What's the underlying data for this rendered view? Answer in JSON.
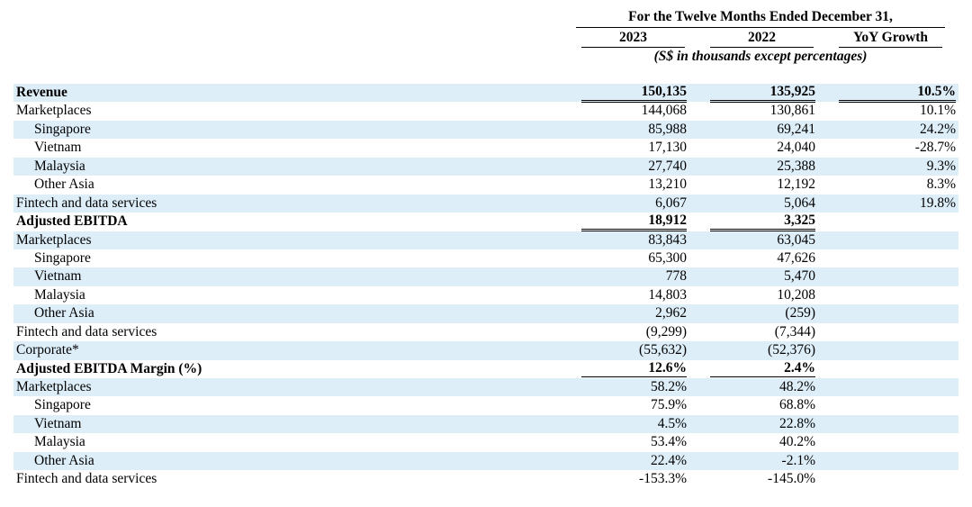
{
  "header": {
    "period": "For the Twelve Months Ended December 31,",
    "col_2023": "2023",
    "col_2022": "2022",
    "col_yoy": "YoY Growth",
    "units": "(S$ in thousands except percentages)"
  },
  "rows": [
    {
      "label": "Revenue",
      "v2023": "150,135",
      "v2022": "135,925",
      "yoy": "10.5%",
      "bold": true,
      "indent": false,
      "shade": true,
      "underline_yoy": true
    },
    {
      "label": "Marketplaces",
      "v2023": "144,068",
      "v2022": "130,861",
      "yoy": "10.1%",
      "bold": false,
      "indent": false,
      "shade": false
    },
    {
      "label": "Singapore",
      "v2023": "85,988",
      "v2022": "69,241",
      "yoy": "24.2%",
      "bold": false,
      "indent": true,
      "shade": true
    },
    {
      "label": "Vietnam",
      "v2023": "17,130",
      "v2022": "24,040",
      "yoy": "-28.7%",
      "bold": false,
      "indent": true,
      "shade": false
    },
    {
      "label": "Malaysia",
      "v2023": "27,740",
      "v2022": "25,388",
      "yoy": "9.3%",
      "bold": false,
      "indent": true,
      "shade": true
    },
    {
      "label": "Other Asia",
      "v2023": "13,210",
      "v2022": "12,192",
      "yoy": "8.3%",
      "bold": false,
      "indent": true,
      "shade": false
    },
    {
      "label": "Fintech and data services",
      "v2023": "6,067",
      "v2022": "5,064",
      "yoy": "19.8%",
      "bold": false,
      "indent": false,
      "shade": true
    },
    {
      "label": "Adjusted EBITDA",
      "v2023": "18,912",
      "v2022": "3,325",
      "yoy": "",
      "bold": true,
      "indent": false,
      "shade": false
    },
    {
      "label": "Marketplaces",
      "v2023": "83,843",
      "v2022": "63,045",
      "yoy": "",
      "bold": false,
      "indent": false,
      "shade": true
    },
    {
      "label": "Singapore",
      "v2023": "65,300",
      "v2022": "47,626",
      "yoy": "",
      "bold": false,
      "indent": true,
      "shade": false
    },
    {
      "label": "Vietnam",
      "v2023": "778",
      "v2022": "5,470",
      "yoy": "",
      "bold": false,
      "indent": true,
      "shade": true
    },
    {
      "label": "Malaysia",
      "v2023": "14,803",
      "v2022": "10,208",
      "yoy": "",
      "bold": false,
      "indent": true,
      "shade": false
    },
    {
      "label": "Other Asia",
      "v2023": "2,962",
      "v2022": "(259)",
      "yoy": "",
      "bold": false,
      "indent": true,
      "shade": true
    },
    {
      "label": "Fintech and data services",
      "v2023": "(9,299)",
      "v2022": "(7,344)",
      "yoy": "",
      "bold": false,
      "indent": false,
      "shade": false
    },
    {
      "label": "Corporate*",
      "v2023": "(55,632)",
      "v2022": "(52,376)",
      "yoy": "",
      "bold": false,
      "indent": false,
      "shade": true
    },
    {
      "label": "Adjusted EBITDA Margin (%)",
      "v2023": "12.6%",
      "v2022": "2.4%",
      "yoy": "",
      "bold": true,
      "indent": false,
      "shade": false
    },
    {
      "label": "Marketplaces",
      "v2023": "58.2%",
      "v2022": "48.2%",
      "yoy": "",
      "bold": false,
      "indent": false,
      "shade": true
    },
    {
      "label": "Singapore",
      "v2023": "75.9%",
      "v2022": "68.8%",
      "yoy": "",
      "bold": false,
      "indent": true,
      "shade": false
    },
    {
      "label": "Vietnam",
      "v2023": "4.5%",
      "v2022": "22.8%",
      "yoy": "",
      "bold": false,
      "indent": true,
      "shade": true
    },
    {
      "label": "Malaysia",
      "v2023": "53.4%",
      "v2022": "40.2%",
      "yoy": "",
      "bold": false,
      "indent": true,
      "shade": false
    },
    {
      "label": "Other Asia",
      "v2023": "22.4%",
      "v2022": "-2.1%",
      "yoy": "",
      "bold": false,
      "indent": true,
      "shade": true
    },
    {
      "label": "Fintech and data services",
      "v2023": "-153.3%",
      "v2022": "-145.0%",
      "yoy": "",
      "bold": false,
      "indent": false,
      "shade": false
    }
  ]
}
